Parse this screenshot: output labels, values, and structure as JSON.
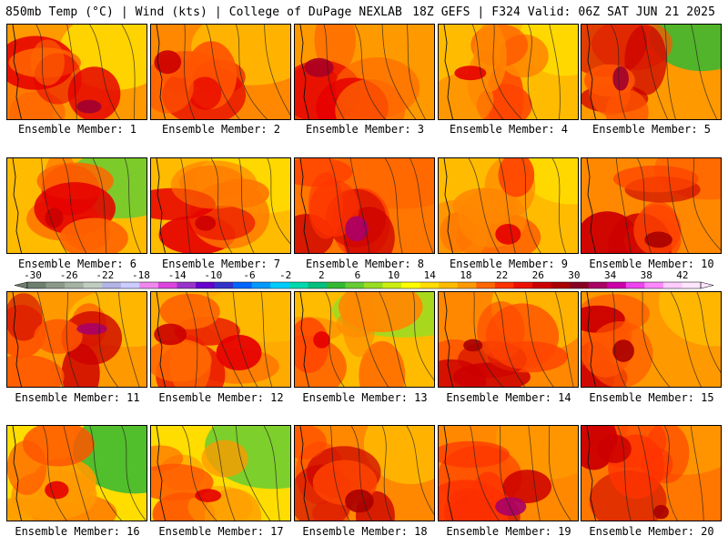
{
  "header": {
    "left": "850mb Temp (°C) | Wind (kts) | College of DuPage NEXLAB",
    "right": "18Z GEFS | F324 Valid: 06Z SAT JUN 21 2025"
  },
  "colorbar": {
    "labels": [
      "-30",
      "-26",
      "-22",
      "-18",
      "-14",
      "-10",
      "-6",
      "-2",
      "2",
      "6",
      "10",
      "14",
      "18",
      "22",
      "26",
      "30",
      "34",
      "38",
      "42"
    ],
    "colors": [
      "#6f7f6f",
      "#8a998a",
      "#a5b3a5",
      "#c0ccc0",
      "#b3b3e6",
      "#ccccff",
      "#ee88ee",
      "#dd44dd",
      "#9933cc",
      "#6600cc",
      "#3333cc",
      "#0066ff",
      "#0099ff",
      "#00ccff",
      "#00d9b0",
      "#00c080",
      "#33b833",
      "#66cc33",
      "#99dd22",
      "#ccee11",
      "#ffff00",
      "#ffdd00",
      "#ffbb00",
      "#ff9900",
      "#ff6600",
      "#ff3300",
      "#ee1100",
      "#cc0000",
      "#aa0000",
      "#880022",
      "#aa0066",
      "#cc00aa",
      "#ee44ee",
      "#ff88ff",
      "#ffccff",
      "#ffe6ff"
    ]
  },
  "panels": [
    {
      "label": "Ensemble Member: 1",
      "palette": [
        "#ff9900",
        "#ff6600",
        "#e60000"
      ],
      "accent": "#ffdd00",
      "blob": "#a00030"
    },
    {
      "label": "Ensemble Member: 2",
      "palette": [
        "#ff8800",
        "#ff5500",
        "#e60000"
      ],
      "accent": "#ffbb00",
      "blob": "#cc0000"
    },
    {
      "label": "Ensemble Member: 3",
      "palette": [
        "#ff9900",
        "#ff6600",
        "#e60000"
      ],
      "accent": "#ff9900",
      "blob": "#aa0022"
    },
    {
      "label": "Ensemble Member: 4",
      "palette": [
        "#ffbb00",
        "#ff8800",
        "#ff4400"
      ],
      "accent": "#ffdd00",
      "blob": "#e60000"
    },
    {
      "label": "Ensemble Member: 5",
      "palette": [
        "#ff9900",
        "#ff5500",
        "#cc0000"
      ],
      "accent": "#33b833",
      "blob": "#a00030"
    },
    {
      "label": "Ensemble Member: 6",
      "palette": [
        "#ffbb00",
        "#ff6600",
        "#e60000"
      ],
      "accent": "#66cc33",
      "blob": "#cc0000"
    },
    {
      "label": "Ensemble Member: 7",
      "palette": [
        "#ffbb00",
        "#ff7700",
        "#e60000"
      ],
      "accent": "#ffdd00",
      "blob": "#cc0000"
    },
    {
      "label": "Ensemble Member: 8",
      "palette": [
        "#ff7700",
        "#ff3300",
        "#cc0000"
      ],
      "accent": "#ff6600",
      "blob": "#aa0066"
    },
    {
      "label": "Ensemble Member: 9",
      "palette": [
        "#ffbb00",
        "#ff8800",
        "#ff4400"
      ],
      "accent": "#ffdd00",
      "blob": "#e60000"
    },
    {
      "label": "Ensemble Member: 10",
      "palette": [
        "#ff8800",
        "#ff4400",
        "#cc0000"
      ],
      "accent": "#ff6600",
      "blob": "#aa0000"
    },
    {
      "label": "Ensemble Member: 11",
      "palette": [
        "#ff9900",
        "#ff5500",
        "#cc0000"
      ],
      "accent": "#ffbb00",
      "blob": "#aa0066"
    },
    {
      "label": "Ensemble Member: 12",
      "palette": [
        "#ffaa00",
        "#ff6600",
        "#e60000"
      ],
      "accent": "#ffbb00",
      "blob": "#cc0000"
    },
    {
      "label": "Ensemble Member: 13",
      "palette": [
        "#ffbb00",
        "#ff8800",
        "#ff4400"
      ],
      "accent": "#99dd22",
      "blob": "#e60000"
    },
    {
      "label": "Ensemble Member: 14",
      "palette": [
        "#ff8800",
        "#ff4400",
        "#cc0000"
      ],
      "accent": "#ffbb00",
      "blob": "#aa0000"
    },
    {
      "label": "Ensemble Member: 15",
      "palette": [
        "#ff9900",
        "#ff5500",
        "#cc0000"
      ],
      "accent": "#ffbb00",
      "blob": "#aa0000"
    },
    {
      "label": "Ensemble Member: 16",
      "palette": [
        "#ffdd00",
        "#ff9900",
        "#ff5500"
      ],
      "accent": "#33b833",
      "blob": "#e60000"
    },
    {
      "label": "Ensemble Member: 17",
      "palette": [
        "#ffdd00",
        "#ff9900",
        "#ff5500"
      ],
      "accent": "#66cc33",
      "blob": "#e60000"
    },
    {
      "label": "Ensemble Member: 18",
      "palette": [
        "#ff8800",
        "#ff4400",
        "#cc0000"
      ],
      "accent": "#ffbb00",
      "blob": "#aa0000"
    },
    {
      "label": "Ensemble Member: 19",
      "palette": [
        "#ff8800",
        "#ff3300",
        "#cc0000"
      ],
      "accent": "#ff9900",
      "blob": "#aa0066"
    },
    {
      "label": "Ensemble Member: 20",
      "palette": [
        "#ff7700",
        "#ff3300",
        "#cc0000"
      ],
      "accent": "#ff9900",
      "blob": "#aa0000"
    }
  ]
}
